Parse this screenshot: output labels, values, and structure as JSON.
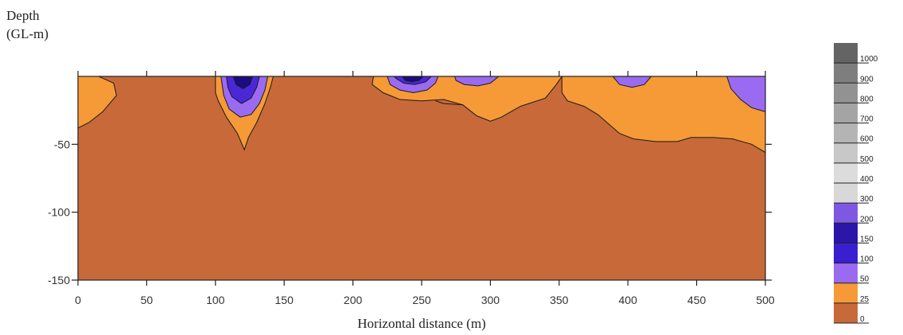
{
  "chart_data": {
    "type": "heatmap",
    "ylabel_line1": "Depth",
    "ylabel_line2": "(GL-m)",
    "xlabel": "Horizontal distance (m)",
    "xlim": [
      0,
      500
    ],
    "ylim": [
      -150,
      0
    ],
    "x_ticks": [
      0,
      50,
      100,
      150,
      200,
      250,
      300,
      350,
      400,
      450,
      500
    ],
    "x_tick_labels": [
      "0",
      "50",
      "100",
      "150",
      "200",
      "250",
      "300",
      "350",
      "400",
      "450",
      "500"
    ],
    "y_ticks": [
      -50,
      -100,
      -150
    ],
    "y_tick_labels": [
      "-50",
      "-100",
      "-150"
    ],
    "top_tick_labels": [],
    "legend_levels": [
      "0",
      "25",
      "50",
      "100",
      "150",
      "200",
      "300",
      "400",
      "500",
      "600",
      "700",
      "800",
      "900",
      "1000"
    ],
    "legend_colors": [
      "#c8693a",
      "#f59a36",
      "#9a6bf0",
      "#3a1fd0",
      "#2a16a8",
      "#7e58e0",
      "#d8d8d8",
      "#dcdcdc",
      "#c8c8c8",
      "#b4b4b4",
      "#a4a4a4",
      "#929292",
      "#7e7e7e",
      "#646464"
    ],
    "zones": [
      {
        "name": "orange",
        "polygons": [
          [
            [
              0,
              0
            ],
            [
              15,
              0
            ],
            [
              26,
              -5
            ],
            [
              28,
              -14
            ],
            [
              18,
              -26
            ],
            [
              8,
              -34
            ],
            [
              0,
              -38
            ]
          ],
          [
            [
              100,
              0
            ],
            [
              142,
              0
            ],
            [
              140,
              -8
            ],
            [
              136,
              -20
            ],
            [
              130,
              -34
            ],
            [
              124,
              -45
            ],
            [
              121,
              -54
            ],
            [
              116,
              -42
            ],
            [
              108,
              -30
            ],
            [
              102,
              -18
            ],
            [
              100,
              -12
            ]
          ],
          [
            [
              215,
              0
            ],
            [
              352,
              0
            ],
            [
              348,
              -6
            ],
            [
              340,
              -16
            ],
            [
              322,
              -22
            ],
            [
              308,
              -30
            ],
            [
              300,
              -33
            ],
            [
              290,
              -29
            ],
            [
              280,
              -21
            ],
            [
              266,
              -17
            ],
            [
              250,
              -18
            ],
            [
              234,
              -17
            ],
            [
              222,
              -12
            ],
            [
              214,
              -6
            ]
          ],
          [
            [
              352,
              0
            ],
            [
              500,
              0
            ],
            [
              500,
              -56
            ],
            [
              490,
              -50
            ],
            [
              476,
              -46
            ],
            [
              462,
              -45
            ],
            [
              446,
              -45
            ],
            [
              436,
              -48
            ],
            [
              420,
              -48
            ],
            [
              404,
              -46
            ],
            [
              394,
              -42
            ],
            [
              386,
              -35
            ],
            [
              378,
              -28
            ],
            [
              368,
              -22
            ],
            [
              356,
              -18
            ],
            [
              352,
              -12
            ]
          ]
        ]
      },
      {
        "name": "violet",
        "polygons": [
          [
            [
              104,
              0
            ],
            [
              138,
              0
            ],
            [
              136,
              -10
            ],
            [
              132,
              -20
            ],
            [
              126,
              -28
            ],
            [
              118,
              -30
            ],
            [
              110,
              -24
            ],
            [
              106,
              -14
            ]
          ],
          [
            [
              225,
              0
            ],
            [
              262,
              0
            ],
            [
              260,
              -5
            ],
            [
              254,
              -10
            ],
            [
              244,
              -12
            ],
            [
              234,
              -10
            ],
            [
              227,
              -6
            ]
          ],
          [
            [
              274,
              0
            ],
            [
              306,
              0
            ],
            [
              300,
              -5
            ],
            [
              291,
              -7
            ],
            [
              281,
              -6
            ],
            [
              275,
              -3
            ]
          ],
          [
            [
              389,
              0
            ],
            [
              417,
              0
            ],
            [
              412,
              -6
            ],
            [
              403,
              -8
            ],
            [
              394,
              -6
            ]
          ],
          [
            [
              472,
              0
            ],
            [
              500,
              0
            ],
            [
              500,
              -26
            ],
            [
              490,
              -23
            ],
            [
              482,
              -17
            ],
            [
              475,
              -9
            ]
          ]
        ]
      },
      {
        "name": "blue",
        "polygons": [
          [
            [
              108,
              0
            ],
            [
              132,
              0
            ],
            [
              130,
              -8
            ],
            [
              126,
              -16
            ],
            [
              119,
              -20
            ],
            [
              112,
              -15
            ],
            [
              109,
              -8
            ]
          ],
          [
            [
              230,
              0
            ],
            [
              257,
              0
            ],
            [
              253,
              -4
            ],
            [
              245,
              -6
            ],
            [
              237,
              -5
            ],
            [
              232,
              -2
            ]
          ]
        ]
      },
      {
        "name": "darkblue",
        "polygons": [
          [
            [
              113,
              0
            ],
            [
              127,
              0
            ],
            [
              125,
              -6
            ],
            [
              120,
              -9
            ],
            [
              115,
              -6
            ]
          ],
          [
            [
              236,
              0
            ],
            [
              251,
              0
            ],
            [
              248,
              -3
            ],
            [
              243,
              -4
            ],
            [
              238,
              -3
            ]
          ]
        ]
      }
    ],
    "zone_colors": {
      "background": "#c8693a",
      "orange": "#f59a36",
      "violet": "#9a6bf0",
      "blue": "#4a28d8",
      "darkblue": "#1c0c80"
    },
    "contour_lines": [
      [
        [
          260,
          -18
        ],
        [
          266,
          -20
        ],
        [
          280,
          -21
        ]
      ]
    ],
    "grid": false
  }
}
